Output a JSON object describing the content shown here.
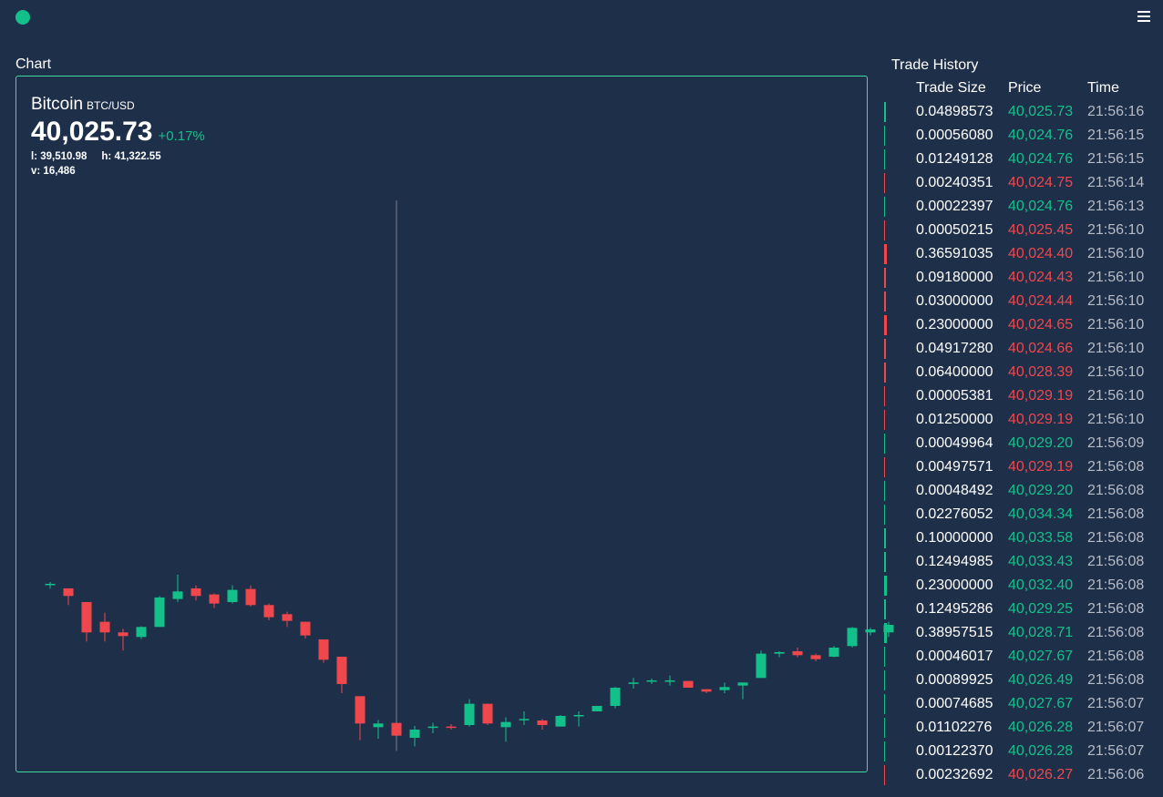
{
  "header": {
    "status_icon": "status-dot-icon",
    "menu_icon": "hamburger-menu-icon"
  },
  "chart_section": {
    "heading": "Chart",
    "name": "Bitcoin",
    "pair": "BTC/USD",
    "price": "40,025.73",
    "change": "+0.17%",
    "low": "l: 39,510.98",
    "high": "h: 41,322.55",
    "volume": "v: 16,486"
  },
  "colors": {
    "up": "#14c08a",
    "down": "#f0474c",
    "background": "#1e2f4a",
    "border": "#3fd9a0"
  },
  "chart_data": {
    "type": "candlestick",
    "title": "Bitcoin BTC/USD",
    "candles": [
      {
        "o": 40060,
        "h": 40066,
        "l": 40044,
        "c": 40060
      },
      {
        "o": 40045,
        "h": 40045,
        "l": 39990,
        "c": 40020
      },
      {
        "o": 40000,
        "h": 40000,
        "l": 39870,
        "c": 39900
      },
      {
        "o": 39935,
        "h": 39965,
        "l": 39870,
        "c": 39900
      },
      {
        "o": 39900,
        "h": 39912,
        "l": 39840,
        "c": 39888
      },
      {
        "o": 39885,
        "h": 39920,
        "l": 39878,
        "c": 39918
      },
      {
        "o": 39918,
        "h": 40020,
        "l": 39918,
        "c": 40015
      },
      {
        "o": 40010,
        "h": 40090,
        "l": 40000,
        "c": 40035
      },
      {
        "o": 40045,
        "h": 40055,
        "l": 40005,
        "c": 40020
      },
      {
        "o": 40025,
        "h": 40028,
        "l": 39980,
        "c": 39995
      },
      {
        "o": 40000,
        "h": 40055,
        "l": 39995,
        "c": 40040
      },
      {
        "o": 40043,
        "h": 40055,
        "l": 39985,
        "c": 39990
      },
      {
        "o": 39990,
        "h": 39995,
        "l": 39940,
        "c": 39950
      },
      {
        "o": 39960,
        "h": 39968,
        "l": 39918,
        "c": 39938
      },
      {
        "o": 39935,
        "h": 39935,
        "l": 39880,
        "c": 39890
      },
      {
        "o": 39877,
        "h": 39877,
        "l": 39800,
        "c": 39810
      },
      {
        "o": 39820,
        "h": 39820,
        "l": 39700,
        "c": 39730
      },
      {
        "o": 39690,
        "h": 39690,
        "l": 39545,
        "c": 39600
      },
      {
        "o": 39588,
        "h": 39612,
        "l": 39550,
        "c": 39600
      },
      {
        "o": 39602,
        "h": 41322,
        "l": 39510,
        "c": 39560
      },
      {
        "o": 39553,
        "h": 39592,
        "l": 39525,
        "c": 39580
      },
      {
        "o": 39590,
        "h": 39602,
        "l": 39568,
        "c": 39590
      },
      {
        "o": 39590,
        "h": 39598,
        "l": 39580,
        "c": 39587
      },
      {
        "o": 39595,
        "h": 39680,
        "l": 39590,
        "c": 39665
      },
      {
        "o": 39665,
        "h": 39665,
        "l": 39595,
        "c": 39600
      },
      {
        "o": 39588,
        "h": 39620,
        "l": 39540,
        "c": 39605
      },
      {
        "o": 39615,
        "h": 39640,
        "l": 39595,
        "c": 39615
      },
      {
        "o": 39610,
        "h": 39615,
        "l": 39580,
        "c": 39595
      },
      {
        "o": 39590,
        "h": 39628,
        "l": 39590,
        "c": 39625
      },
      {
        "o": 39625,
        "h": 39640,
        "l": 39590,
        "c": 39628
      },
      {
        "o": 39640,
        "h": 39658,
        "l": 39640,
        "c": 39658
      },
      {
        "o": 39658,
        "h": 39720,
        "l": 39650,
        "c": 39718
      },
      {
        "o": 39735,
        "h": 39750,
        "l": 39715,
        "c": 39735
      },
      {
        "o": 39740,
        "h": 39748,
        "l": 39730,
        "c": 39742
      },
      {
        "o": 39740,
        "h": 39758,
        "l": 39725,
        "c": 39742
      },
      {
        "o": 39740,
        "h": 39740,
        "l": 39718,
        "c": 39718
      },
      {
        "o": 39713,
        "h": 39713,
        "l": 39700,
        "c": 39705
      },
      {
        "o": 39710,
        "h": 39735,
        "l": 39700,
        "c": 39720
      },
      {
        "o": 39725,
        "h": 39730,
        "l": 39680,
        "c": 39735
      },
      {
        "o": 39750,
        "h": 39840,
        "l": 39750,
        "c": 39830
      },
      {
        "o": 39830,
        "h": 39838,
        "l": 39818,
        "c": 39835
      },
      {
        "o": 39838,
        "h": 39850,
        "l": 39818,
        "c": 39825
      },
      {
        "o": 39825,
        "h": 39830,
        "l": 39805,
        "c": 39812
      },
      {
        "o": 39820,
        "h": 39855,
        "l": 39818,
        "c": 39850
      },
      {
        "o": 39855,
        "h": 39918,
        "l": 39850,
        "c": 39915
      },
      {
        "o": 39900,
        "h": 39915,
        "l": 39890,
        "c": 39910
      },
      {
        "o": 39900,
        "h": 39935,
        "l": 39885,
        "c": 39925
      }
    ],
    "ylim": [
      39510.98,
      41322.55
    ]
  },
  "trade_history": {
    "heading": "Trade History",
    "columns": [
      "Trade Size",
      "Price",
      "Time"
    ],
    "rows": [
      {
        "size": "0.04898573",
        "price": "40,025.73",
        "time": "21:56:16",
        "side": "buy",
        "vol": 0.049
      },
      {
        "size": "0.00056080",
        "price": "40,024.76",
        "time": "21:56:15",
        "side": "buy",
        "vol": 0.0006
      },
      {
        "size": "0.01249128",
        "price": "40,024.76",
        "time": "21:56:15",
        "side": "buy",
        "vol": 0.0125
      },
      {
        "size": "0.00240351",
        "price": "40,024.75",
        "time": "21:56:14",
        "side": "sell",
        "vol": 0.0024
      },
      {
        "size": "0.00022397",
        "price": "40,024.76",
        "time": "21:56:13",
        "side": "buy",
        "vol": 0.0002
      },
      {
        "size": "0.00050215",
        "price": "40,025.45",
        "time": "21:56:10",
        "side": "sell",
        "vol": 0.0005
      },
      {
        "size": "0.36591035",
        "price": "40,024.40",
        "time": "21:56:10",
        "side": "sell",
        "vol": 0.366
      },
      {
        "size": "0.09180000",
        "price": "40,024.43",
        "time": "21:56:10",
        "side": "sell",
        "vol": 0.092
      },
      {
        "size": "0.03000000",
        "price": "40,024.44",
        "time": "21:56:10",
        "side": "sell",
        "vol": 0.03
      },
      {
        "size": "0.23000000",
        "price": "40,024.65",
        "time": "21:56:10",
        "side": "sell",
        "vol": 0.23
      },
      {
        "size": "0.04917280",
        "price": "40,024.66",
        "time": "21:56:10",
        "side": "sell",
        "vol": 0.049
      },
      {
        "size": "0.06400000",
        "price": "40,028.39",
        "time": "21:56:10",
        "side": "sell",
        "vol": 0.064
      },
      {
        "size": "0.00005381",
        "price": "40,029.19",
        "time": "21:56:10",
        "side": "sell",
        "vol": 0.0001
      },
      {
        "size": "0.01250000",
        "price": "40,029.19",
        "time": "21:56:10",
        "side": "sell",
        "vol": 0.0125
      },
      {
        "size": "0.00049964",
        "price": "40,029.20",
        "time": "21:56:09",
        "side": "buy",
        "vol": 0.0005
      },
      {
        "size": "0.00497571",
        "price": "40,029.19",
        "time": "21:56:08",
        "side": "sell",
        "vol": 0.005
      },
      {
        "size": "0.00048492",
        "price": "40,029.20",
        "time": "21:56:08",
        "side": "buy",
        "vol": 0.0005
      },
      {
        "size": "0.02276052",
        "price": "40,034.34",
        "time": "21:56:08",
        "side": "buy",
        "vol": 0.023
      },
      {
        "size": "0.10000000",
        "price": "40,033.58",
        "time": "21:56:08",
        "side": "buy",
        "vol": 0.1
      },
      {
        "size": "0.12494985",
        "price": "40,033.43",
        "time": "21:56:08",
        "side": "buy",
        "vol": 0.125
      },
      {
        "size": "0.23000000",
        "price": "40,032.40",
        "time": "21:56:08",
        "side": "buy",
        "vol": 0.23
      },
      {
        "size": "0.12495286",
        "price": "40,029.25",
        "time": "21:56:08",
        "side": "buy",
        "vol": 0.125
      },
      {
        "size": "0.38957515",
        "price": "40,028.71",
        "time": "21:56:08",
        "side": "buy",
        "vol": 0.39
      },
      {
        "size": "0.00046017",
        "price": "40,027.67",
        "time": "21:56:08",
        "side": "buy",
        "vol": 0.0005
      },
      {
        "size": "0.00089925",
        "price": "40,026.49",
        "time": "21:56:08",
        "side": "buy",
        "vol": 0.0009
      },
      {
        "size": "0.00074685",
        "price": "40,027.67",
        "time": "21:56:07",
        "side": "buy",
        "vol": 0.0007
      },
      {
        "size": "0.01102276",
        "price": "40,026.28",
        "time": "21:56:07",
        "side": "buy",
        "vol": 0.011
      },
      {
        "size": "0.00122370",
        "price": "40,026.28",
        "time": "21:56:07",
        "side": "buy",
        "vol": 0.0012
      },
      {
        "size": "0.00232692",
        "price": "40,026.27",
        "time": "21:56:06",
        "side": "sell",
        "vol": 0.0023
      }
    ]
  }
}
